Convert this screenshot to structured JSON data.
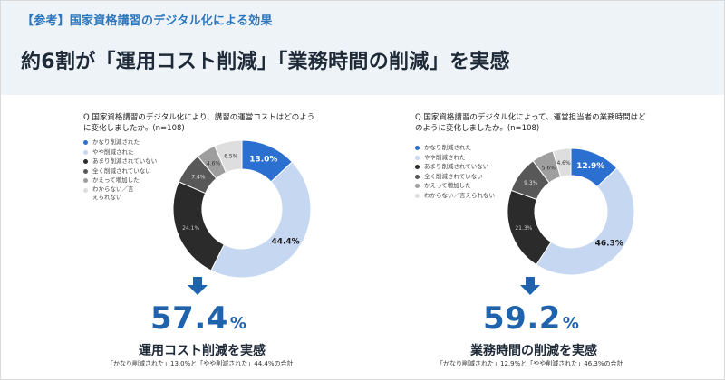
{
  "header": {
    "tag": "【参考】国家資格講習のデジタル化による効果",
    "title": "約6割が「運用コスト削減」「業務時間の削減」を実感"
  },
  "legend_colors": [
    "#2b6fd1",
    "#c6d7f2",
    "#2b2b2b",
    "#585858",
    "#9e9e9e",
    "#dedede"
  ],
  "chart_data": [
    {
      "type": "pie",
      "question": "Q.国家資格講習のデジタル化により、講習の運営コストはどのように変化しましたか。(n=108)",
      "legend": [
        "かなり削減された",
        "やや削減された",
        "あまり削減されていない",
        "全く削減されていない",
        "かえって増加した",
        "わからない／言えられない"
      ],
      "values": [
        13.0,
        44.4,
        24.1,
        7.4,
        4.6,
        6.5
      ],
      "labels": [
        "13.0%",
        "44.4%",
        "24.1%",
        "7.4%",
        "4.6%",
        "6.5%"
      ],
      "summary_value": "57.4",
      "summary_unit": "%",
      "summary_label": "運用コスト削減を実感",
      "summary_note": "「かなり削減された」13.0%と「やや削減された」44.4%の合計"
    },
    {
      "type": "pie",
      "question": "Q.国家資格講習のデジタル化によって、運営担当者の業務時間はどのように変化しましたか。(n=108)",
      "legend": [
        "かなり削減された",
        "やや削減された",
        "あまり削減されていない",
        "全く削減されていない",
        "かえって増加した",
        "わからない／言えられない"
      ],
      "values": [
        12.9,
        46.3,
        21.3,
        9.3,
        5.6,
        4.6
      ],
      "labels": [
        "12.9%",
        "46.3%",
        "21.3%",
        "9.3%",
        "5.6%",
        "4.6%"
      ],
      "summary_value": "59.2",
      "summary_unit": "%",
      "summary_label": "業務時間の削減を実感",
      "summary_note": "「かなり削減された」12.9%と「やや削減された」46.3%の合計"
    }
  ]
}
